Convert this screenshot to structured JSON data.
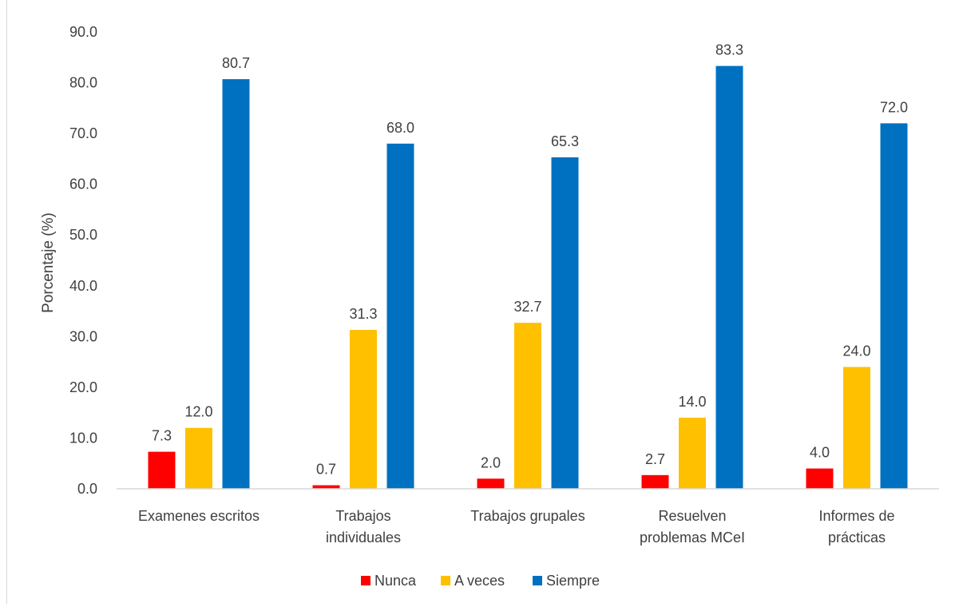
{
  "chart_data": {
    "type": "bar",
    "title": "",
    "xlabel": "",
    "ylabel": "Porcentaje (%)",
    "ylim": [
      0,
      90
    ],
    "yticks": [
      "0.0",
      "10.0",
      "20.0",
      "30.0",
      "40.0",
      "50.0",
      "60.0",
      "70.0",
      "80.0",
      "90.0"
    ],
    "grid": false,
    "legend_position": "bottom",
    "categories": [
      [
        "Examenes escritos"
      ],
      [
        "Trabajos",
        "individuales"
      ],
      [
        "Trabajos grupales"
      ],
      [
        "Resuelven",
        "problemas MCeI"
      ],
      [
        "Informes de",
        "prácticas"
      ]
    ],
    "series": [
      {
        "name": "Nunca",
        "color": "#ff0000",
        "values": [
          7.3,
          0.7,
          2.0,
          2.7,
          4.0
        ],
        "labels": [
          "7.3",
          "0.7",
          "2.0",
          "2.7",
          "4.0"
        ]
      },
      {
        "name": "A veces",
        "color": "#ffc000",
        "values": [
          12.0,
          31.3,
          32.7,
          14.0,
          24.0
        ],
        "labels": [
          "12.0",
          "31.3",
          "32.7",
          "14.0",
          "24.0"
        ]
      },
      {
        "name": "Siempre",
        "color": "#0070c0",
        "values": [
          80.7,
          68.0,
          65.3,
          83.3,
          72.0
        ],
        "labels": [
          "80.7",
          "68.0",
          "65.3",
          "83.3",
          "72.0"
        ]
      }
    ]
  }
}
